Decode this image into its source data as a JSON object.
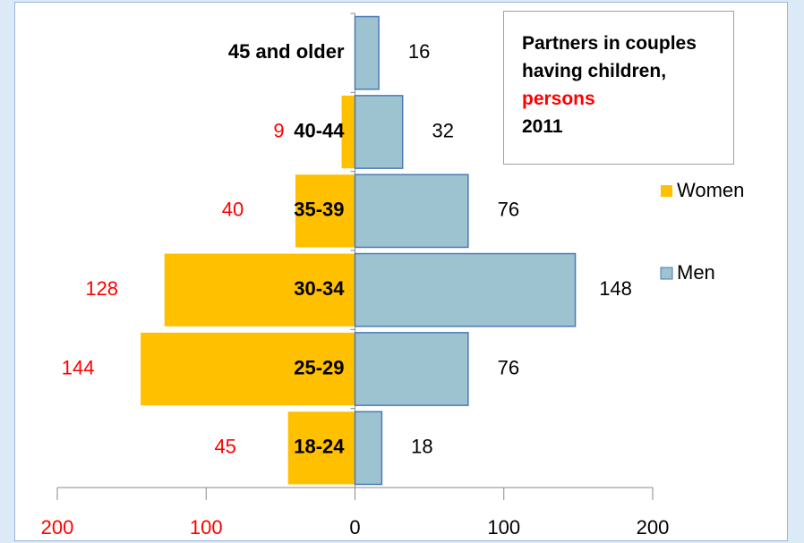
{
  "chart_data": {
    "type": "pyramid",
    "title": "Partners in couples having children,",
    "unit": "persons",
    "year": "2011",
    "categories": [
      "18-24",
      "25-29",
      "30-34",
      "35-39",
      "40-44",
      "45 and older"
    ],
    "series": [
      {
        "name": "Women",
        "color": "#ffc000",
        "side": "left",
        "values": [
          45,
          144,
          128,
          40,
          9,
          null
        ]
      },
      {
        "name": "Men",
        "color": "#9dc3d0",
        "side": "right",
        "values": [
          18,
          76,
          148,
          76,
          32,
          16
        ]
      }
    ],
    "xlim": [
      -200,
      200
    ],
    "xticks": [
      {
        "value": -200,
        "label": "200"
      },
      {
        "value": -100,
        "label": "100"
      },
      0,
      100,
      200
    ],
    "legend": "right"
  }
}
